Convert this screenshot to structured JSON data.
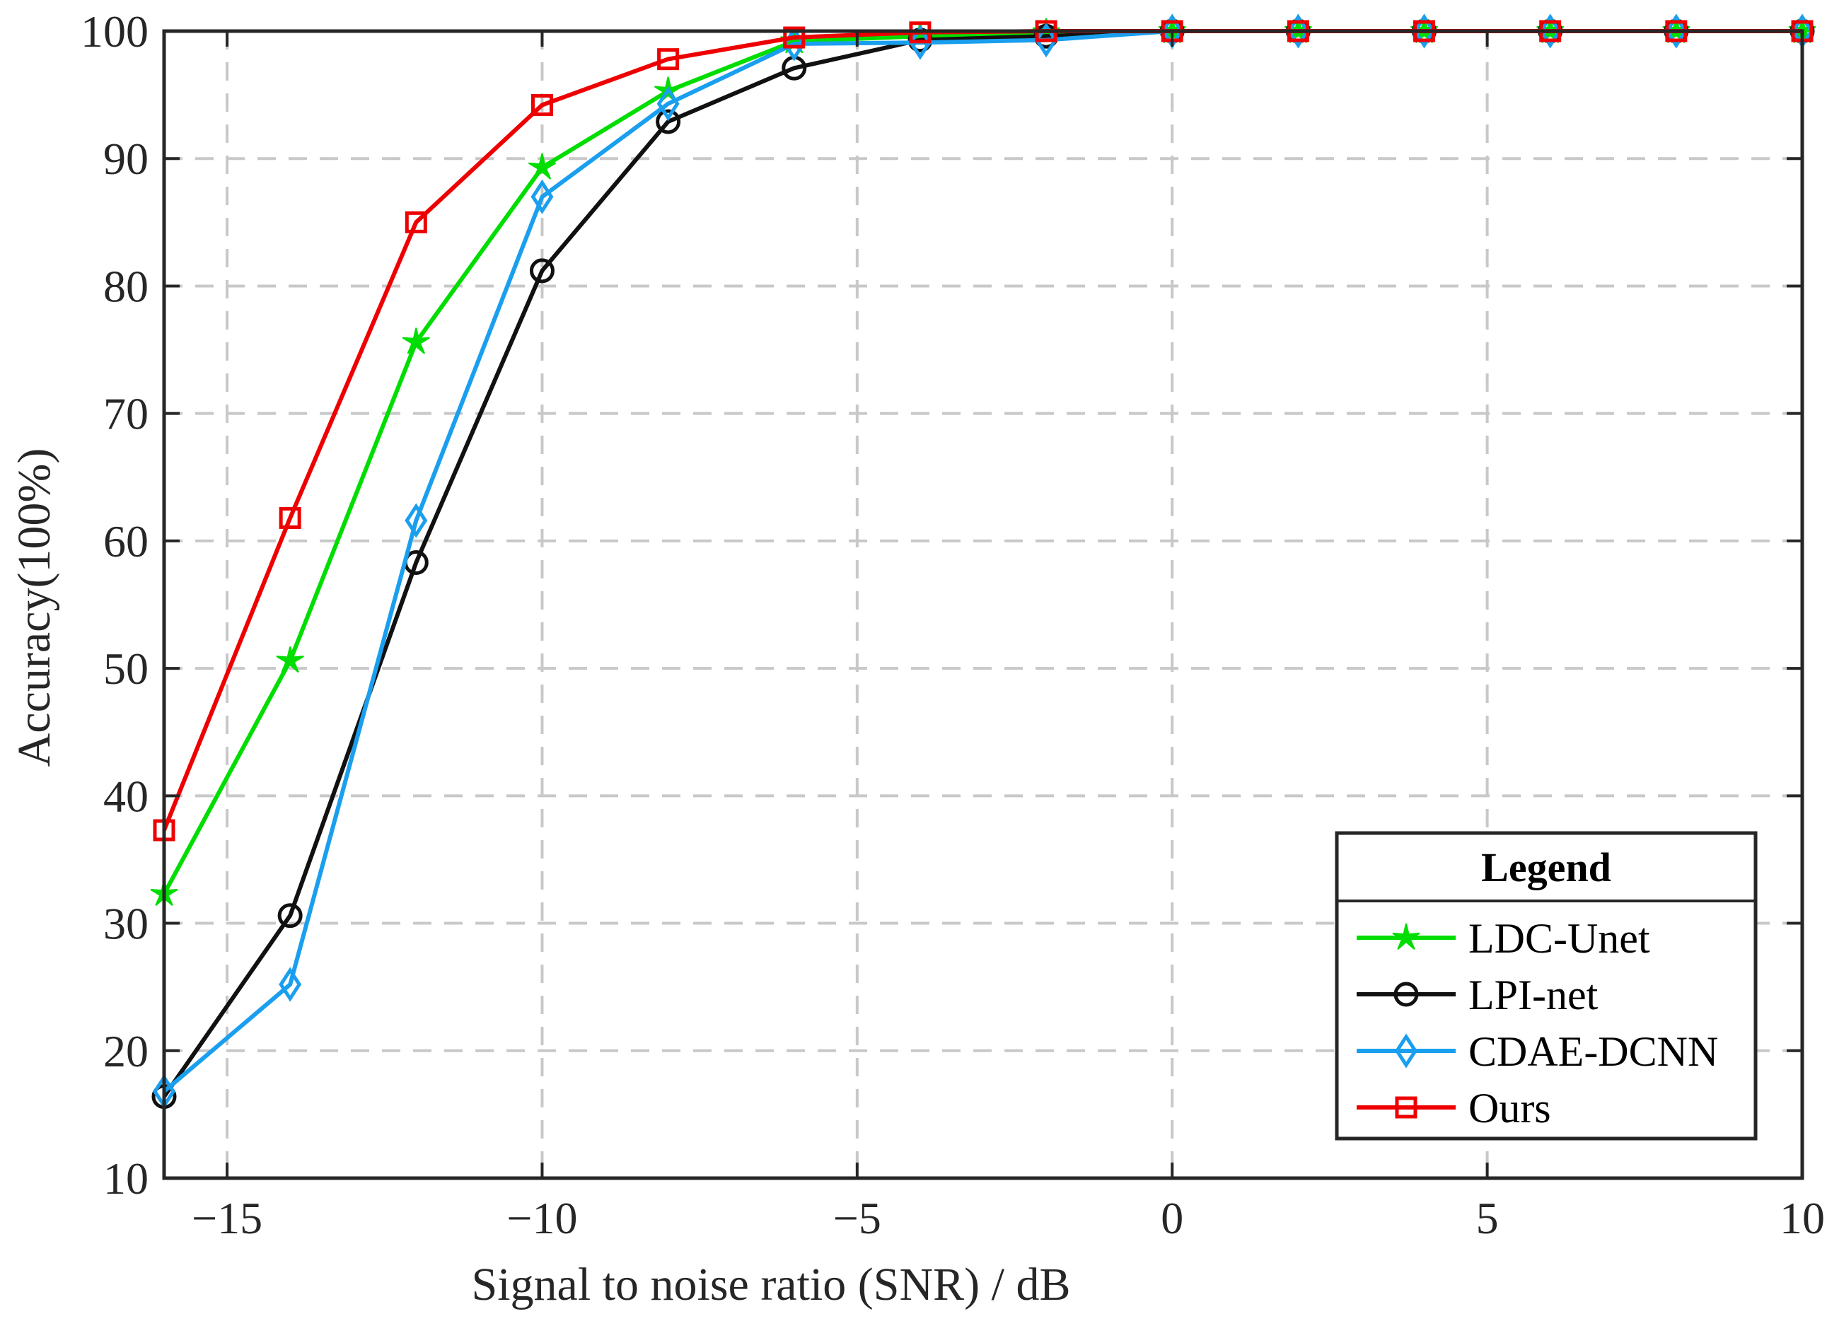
{
  "chart_data": {
    "type": "line",
    "title": "",
    "xlabel": "Signal to noise ratio (SNR) / dB",
    "ylabel": "Accuracy(100%)",
    "xlim": [
      -16,
      10
    ],
    "ylim": [
      10,
      100
    ],
    "xticks": [
      -15,
      -10,
      -5,
      0,
      5,
      10
    ],
    "xtick_labels": [
      "−15",
      "−10",
      "−5",
      "0",
      "5",
      "10"
    ],
    "yticks": [
      10,
      20,
      30,
      40,
      50,
      60,
      70,
      80,
      90,
      100
    ],
    "ytick_labels": [
      "10",
      "20",
      "30",
      "40",
      "50",
      "60",
      "70",
      "80",
      "90",
      "100"
    ],
    "grid": true,
    "legend": {
      "title": "Legend",
      "position": "bottom-right"
    },
    "x": [
      -16,
      -14,
      -12,
      -10,
      -8,
      -6,
      -4,
      -2,
      0,
      2,
      4,
      6,
      8,
      10
    ],
    "series": [
      {
        "name": "LDC-Unet",
        "color": "#00dd00",
        "marker": "star",
        "values": [
          32.3,
          50.6,
          75.6,
          89.3,
          95.3,
          99.2,
          99.6,
          99.9,
          100,
          100,
          100,
          100,
          100,
          100
        ]
      },
      {
        "name": "LPI-net",
        "color": "#111111",
        "marker": "circle",
        "values": [
          16.4,
          30.6,
          58.3,
          81.2,
          92.9,
          97.1,
          99.3,
          99.6,
          100,
          100,
          100,
          100,
          100,
          100
        ]
      },
      {
        "name": "CDAE-DCNN",
        "color": "#1a9fef",
        "marker": "diamond",
        "values": [
          16.8,
          25.2,
          61.6,
          87.0,
          94.3,
          99.0,
          99.1,
          99.3,
          100,
          100,
          100,
          100,
          100,
          100
        ]
      },
      {
        "name": "Ours",
        "color": "#ee0000",
        "marker": "square",
        "values": [
          37.3,
          61.8,
          85.0,
          94.2,
          97.8,
          99.5,
          99.9,
          100,
          100,
          100,
          100,
          100,
          100,
          100
        ]
      }
    ]
  }
}
